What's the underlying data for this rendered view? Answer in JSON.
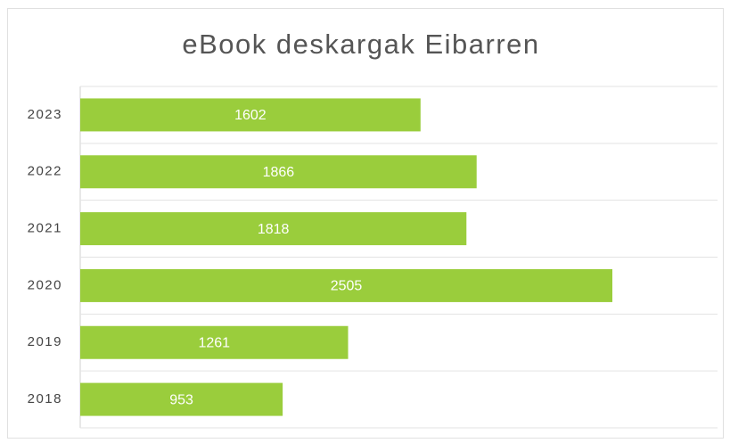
{
  "chart_data": {
    "type": "barh",
    "title": "eBook deskargak Eibarren",
    "categories": [
      "2023",
      "2022",
      "2021",
      "2020",
      "2019",
      "2018"
    ],
    "values": [
      1602,
      1866,
      1818,
      2505,
      1261,
      953
    ],
    "color": "#9acd3c",
    "xlim": [
      0,
      3000
    ]
  }
}
